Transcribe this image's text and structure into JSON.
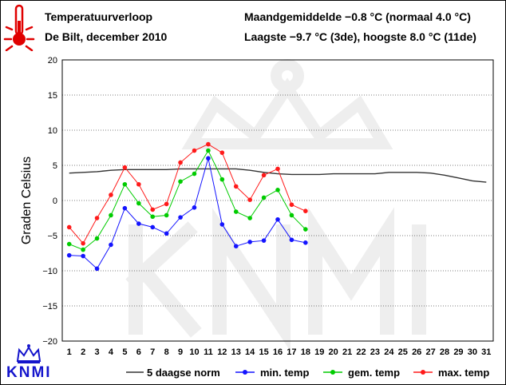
{
  "header": {
    "title": "Temperatuurverloop",
    "subtitle": "De Bilt, december 2010",
    "monthly_avg_line": "Maandgemiddelde −0.8 °C (normaal 4.0 °C)",
    "extremes_line": "Laagste −9.7 °C (3de), hoogste 8.0 °C (11de)"
  },
  "logo": {
    "text": "KNMI",
    "icon": "thermometer-icon",
    "crown": "crown-icon"
  },
  "colors": {
    "norm": "#333333",
    "min": "#1414ff",
    "gem": "#00cc00",
    "max": "#ff1a1a",
    "grid": "#000000",
    "watermark": "#f0f0f0"
  },
  "chart_data": {
    "type": "line",
    "title": "Temperatuurverloop",
    "ylabel": "Graden Celsius",
    "xlabel": "",
    "ylim": [
      -20,
      20
    ],
    "yticks": [
      20,
      15,
      10,
      5,
      0,
      -5,
      -10,
      -15,
      -20
    ],
    "ytick_labels": [
      "20",
      "15",
      "10",
      "5",
      "0",
      "−5",
      "−10",
      "−15",
      "−20"
    ],
    "xlim": [
      0.5,
      31.5
    ],
    "x": [
      1,
      2,
      3,
      4,
      5,
      6,
      7,
      8,
      9,
      10,
      11,
      12,
      13,
      14,
      15,
      16,
      17,
      18,
      19,
      20,
      21,
      22,
      23,
      24,
      25,
      26,
      27,
      28,
      29,
      30,
      31
    ],
    "grid": "horizontal",
    "legend_position": "bottom",
    "series": [
      {
        "name": "5 daagse norm",
        "key": "norm",
        "x": [
          1,
          2,
          3,
          4,
          5,
          6,
          7,
          8,
          9,
          10,
          11,
          12,
          13,
          14,
          15,
          16,
          17,
          18,
          19,
          20,
          21,
          22,
          23,
          24,
          25,
          26,
          27,
          28,
          29,
          30,
          31
        ],
        "values": [
          3.9,
          4.0,
          4.1,
          4.3,
          4.4,
          4.4,
          4.4,
          4.4,
          4.5,
          4.5,
          4.5,
          4.5,
          4.5,
          4.3,
          4.0,
          3.8,
          3.7,
          3.7,
          3.7,
          3.8,
          3.8,
          3.8,
          3.8,
          4.0,
          4.0,
          4.0,
          3.9,
          3.6,
          3.2,
          2.8,
          2.6
        ],
        "markers": false
      },
      {
        "name": "min. temp",
        "key": "min",
        "x": [
          1,
          2,
          3,
          4,
          5,
          6,
          7,
          8,
          9,
          10,
          11,
          12,
          13,
          14,
          15,
          16,
          17,
          18
        ],
        "values": [
          -7.8,
          -7.9,
          -9.7,
          -6.3,
          -1.1,
          -3.3,
          -3.8,
          -4.7,
          -2.4,
          -1.0,
          6.0,
          -3.4,
          -6.5,
          -5.9,
          -5.7,
          -2.7,
          -5.6,
          -6.0
        ],
        "markers": true
      },
      {
        "name": "gem. temp",
        "key": "gem",
        "x": [
          1,
          2,
          3,
          4,
          5,
          6,
          7,
          8,
          9,
          10,
          11,
          12,
          13,
          14,
          15,
          16,
          17,
          18
        ],
        "values": [
          -6.2,
          -7.0,
          -5.4,
          -2.1,
          2.3,
          -0.4,
          -2.3,
          -2.1,
          2.7,
          3.8,
          7.1,
          3.0,
          -1.6,
          -2.5,
          0.4,
          1.5,
          -2.1,
          -4.1
        ],
        "markers": true
      },
      {
        "name": "max. temp",
        "key": "max",
        "x": [
          1,
          2,
          3,
          4,
          5,
          6,
          7,
          8,
          9,
          10,
          11,
          12,
          13,
          14,
          15,
          16,
          17,
          18
        ],
        "values": [
          -3.8,
          -6.1,
          -2.5,
          0.8,
          4.7,
          2.3,
          -1.3,
          -0.5,
          5.4,
          7.1,
          8.0,
          6.8,
          2.0,
          0.1,
          3.6,
          4.5,
          -0.6,
          -1.5
        ],
        "markers": true
      }
    ]
  }
}
